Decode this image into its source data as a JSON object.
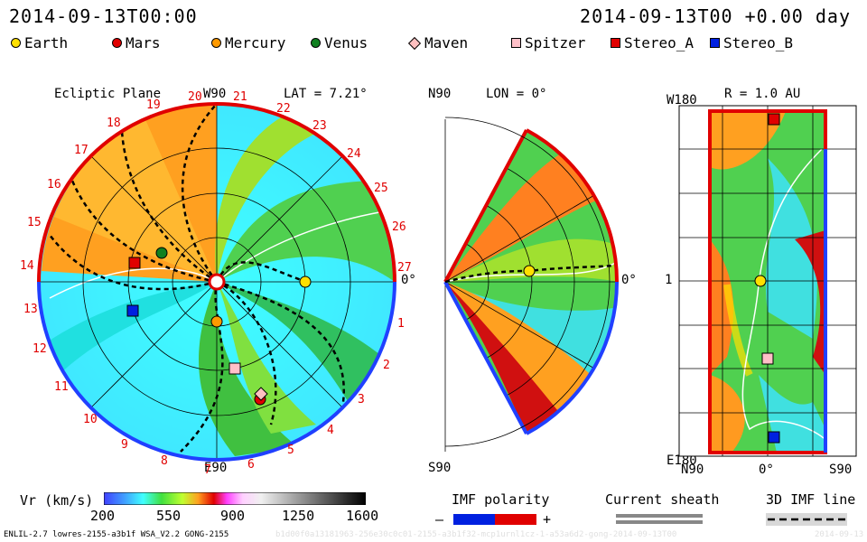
{
  "header": {
    "left_timestamp": "2014-09-13T00:00",
    "right_timestamp": "2014-09-13T00 +0.00 day"
  },
  "legend": [
    {
      "label": "Earth",
      "shape": "circle",
      "color": "#ffe000"
    },
    {
      "label": "Mars",
      "shape": "circle",
      "color": "#e00000"
    },
    {
      "label": "Mercury",
      "shape": "circle",
      "color": "#ff9a00"
    },
    {
      "label": "Venus",
      "shape": "circle",
      "color": "#108020"
    },
    {
      "label": "Maven",
      "shape": "diamond",
      "color": "#ffc0c0"
    },
    {
      "label": "Spitzer",
      "shape": "square",
      "color": "#ffc0c8"
    },
    {
      "label": "Stereo_A",
      "shape": "square",
      "color": "#e00000"
    },
    {
      "label": "Stereo_B",
      "shape": "square",
      "color": "#0020e0"
    }
  ],
  "ecliptic": {
    "title": "Ecliptic Plane",
    "top_label": "W90",
    "bottom_label": "E90",
    "right_label": "0°",
    "lat_label": "LAT = 7.21°",
    "sector_numbers": [
      "20",
      "21",
      "22",
      "23",
      "24",
      "25",
      "26",
      "27",
      "1",
      "2",
      "3",
      "4",
      "5",
      "6",
      "7",
      "8",
      "9",
      "10",
      "11",
      "12",
      "13",
      "14",
      "15",
      "16",
      "17",
      "18",
      "19"
    ]
  },
  "meridional": {
    "top_label": "N90",
    "bottom_label": "S90",
    "right_label": "0°",
    "lon_label": "LON = 0°"
  },
  "radial": {
    "title": "R = 1.0 AU",
    "top_label": "W180",
    "bottom_label": "E180",
    "mid_label": "1",
    "x_labels": [
      "N90",
      "0°",
      "S90"
    ]
  },
  "colorbar": {
    "label": "Vr (km/s)",
    "ticks": [
      "200",
      "550",
      "900",
      "1250",
      "1600"
    ]
  },
  "imf": {
    "label": "IMF polarity",
    "minus": "–",
    "plus": "+"
  },
  "current_sheath": {
    "label": "Current sheath"
  },
  "imf_line": {
    "label": "3D IMF line"
  },
  "footer": {
    "model": "ENLIL-2.7 lowres-2155-a3b1f WSA_V2.2 GONG-2155",
    "run_id": "b1d00f0a13181963-256e30c0c01-2155-a3b1f32-mcp1urnl1cz-1-a53a6d2-gong-2014-09-13T00",
    "right": "2014-09-13"
  }
}
